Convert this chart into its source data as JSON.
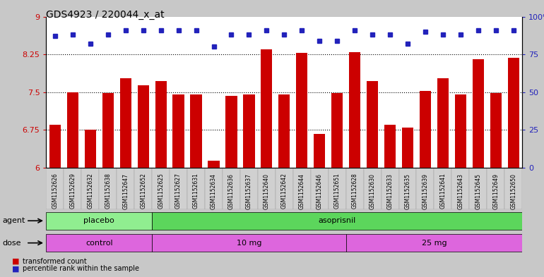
{
  "title": "GDS4923 / 220044_x_at",
  "samples": [
    "GSM1152626",
    "GSM1152629",
    "GSM1152632",
    "GSM1152638",
    "GSM1152647",
    "GSM1152652",
    "GSM1152625",
    "GSM1152627",
    "GSM1152631",
    "GSM1152634",
    "GSM1152636",
    "GSM1152637",
    "GSM1152640",
    "GSM1152642",
    "GSM1152644",
    "GSM1152646",
    "GSM1152651",
    "GSM1152628",
    "GSM1152630",
    "GSM1152633",
    "GSM1152635",
    "GSM1152639",
    "GSM1152641",
    "GSM1152643",
    "GSM1152645",
    "GSM1152649",
    "GSM1152650"
  ],
  "bar_values": [
    6.85,
    7.5,
    6.75,
    7.48,
    7.78,
    7.63,
    7.72,
    7.45,
    7.45,
    6.13,
    7.43,
    7.45,
    8.35,
    7.45,
    8.28,
    6.67,
    7.48,
    8.3,
    7.72,
    6.85,
    6.8,
    7.52,
    7.78,
    7.45,
    8.15,
    7.48,
    8.18
  ],
  "pct_values": [
    87,
    88,
    82,
    88,
    91,
    91,
    91,
    91,
    91,
    80,
    88,
    88,
    91,
    88,
    91,
    84,
    84,
    91,
    88,
    88,
    82,
    90,
    88,
    88,
    91,
    91,
    91
  ],
  "bar_color": "#cc0000",
  "dot_color": "#2222bb",
  "ylim_left": [
    6,
    9
  ],
  "hlines": [
    6.75,
    7.5,
    8.25
  ],
  "yticks_left": [
    6,
    6.75,
    7.5,
    8.25,
    9
  ],
  "yticks_right": [
    0,
    25,
    50,
    75,
    100
  ],
  "agent_groups": [
    {
      "label": "placebo",
      "start": 0,
      "end": 6,
      "color": "#90ee90"
    },
    {
      "label": "asoprisnil",
      "start": 6,
      "end": 27,
      "color": "#5cd65c"
    }
  ],
  "dose_groups": [
    {
      "label": "control",
      "start": 0,
      "end": 6,
      "color": "#dd66dd"
    },
    {
      "label": "10 mg",
      "start": 6,
      "end": 17,
      "color": "#dd66dd"
    },
    {
      "label": "25 mg",
      "start": 17,
      "end": 27,
      "color": "#dd66dd"
    }
  ],
  "bg_color": "#c8c8c8",
  "tick_label_bg": "#d0d0d0",
  "title_fontsize": 10,
  "tick_fontsize": 5.5,
  "label_fontsize": 8
}
